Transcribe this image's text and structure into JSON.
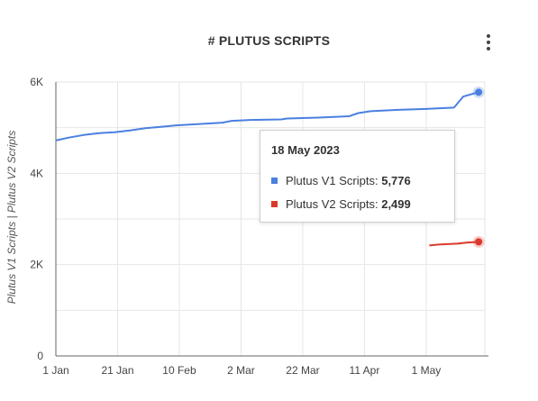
{
  "header": {
    "title": "# PLUTUS SCRIPTS",
    "menu_icon": "more-vert-icon"
  },
  "tooltip": {
    "date": "18 May 2023",
    "rows": [
      {
        "label": "Plutus V1 Scripts: ",
        "value": "5,776",
        "color": "#4a80e0"
      },
      {
        "label": "Plutus V2 Scripts: ",
        "value": "2,499",
        "color": "#d93a2b"
      }
    ]
  },
  "chart_data": {
    "type": "line",
    "title": "# PLUTUS SCRIPTS",
    "ylabel": "Plutus V1 Scripts | Plutus V2 Scripts",
    "xlabel": "",
    "x_ticks": [
      "1 Jan",
      "21 Jan",
      "10 Feb",
      "2 Mar",
      "22 Mar",
      "11 Apr",
      "1 May"
    ],
    "y_ticks": [
      "0",
      "2K",
      "4K",
      "6K"
    ],
    "ylim": [
      0,
      6000
    ],
    "xlim": [
      "2023-01-01",
      "2023-05-20"
    ],
    "grid": true,
    "series": [
      {
        "name": "Plutus V1 Scripts",
        "color": "#4a80e0",
        "points": [
          [
            "2023-01-01",
            4720
          ],
          [
            "2023-01-05",
            4780
          ],
          [
            "2023-01-10",
            4840
          ],
          [
            "2023-01-15",
            4880
          ],
          [
            "2023-01-20",
            4900
          ],
          [
            "2023-01-25",
            4940
          ],
          [
            "2023-01-30",
            4990
          ],
          [
            "2023-02-04",
            5020
          ],
          [
            "2023-02-09",
            5050
          ],
          [
            "2023-02-14",
            5070
          ],
          [
            "2023-02-19",
            5090
          ],
          [
            "2023-02-24",
            5110
          ],
          [
            "2023-02-27",
            5150
          ],
          [
            "2023-03-05",
            5170
          ],
          [
            "2023-03-15",
            5180
          ],
          [
            "2023-03-17",
            5200
          ],
          [
            "2023-03-27",
            5220
          ],
          [
            "2023-04-06",
            5250
          ],
          [
            "2023-04-09",
            5320
          ],
          [
            "2023-04-13",
            5360
          ],
          [
            "2023-04-22",
            5390
          ],
          [
            "2023-05-01",
            5410
          ],
          [
            "2023-05-10",
            5440
          ],
          [
            "2023-05-13",
            5680
          ],
          [
            "2023-05-16",
            5740
          ],
          [
            "2023-05-18",
            5776
          ]
        ]
      },
      {
        "name": "Plutus V2 Scripts",
        "color": "#d93a2b",
        "points": [
          [
            "2023-05-02",
            2420
          ],
          [
            "2023-05-05",
            2440
          ],
          [
            "2023-05-08",
            2450
          ],
          [
            "2023-05-11",
            2460
          ],
          [
            "2023-05-14",
            2480
          ],
          [
            "2023-05-18",
            2499
          ]
        ]
      }
    ]
  }
}
